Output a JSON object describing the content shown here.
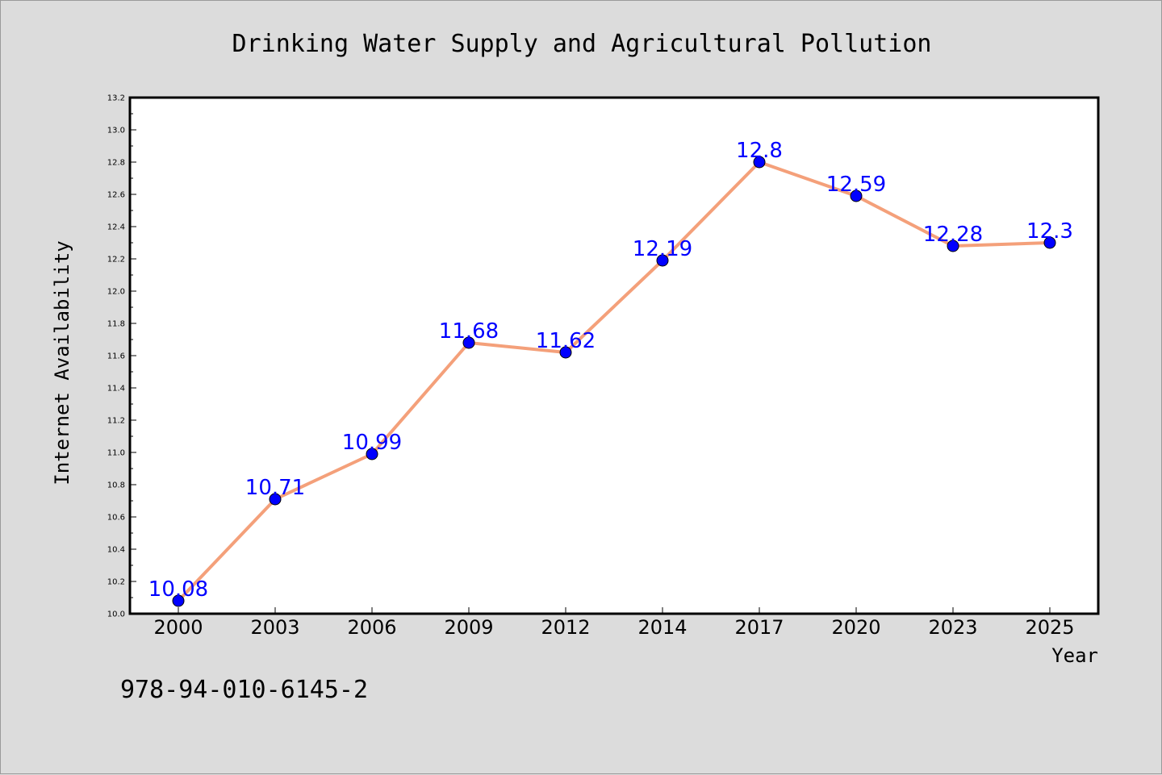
{
  "chart_data": {
    "type": "line",
    "title": "Drinking Water Supply and Agricultural Pollution",
    "xlabel": "Year",
    "ylabel": "Internet Availability",
    "categories": [
      "2000",
      "2003",
      "2006",
      "2009",
      "2012",
      "2014",
      "2017",
      "2020",
      "2023",
      "2025"
    ],
    "series": [
      {
        "values": [
          10.08,
          10.71,
          10.99,
          11.68,
          11.62,
          12.19,
          12.8,
          12.59,
          12.28,
          12.3
        ],
        "labels": [
          "10.08",
          "10.71",
          "10.99",
          "11.68",
          "11.62",
          "12.19",
          "12.8",
          "12.59",
          "12.28",
          "12.3"
        ],
        "line_color": "#f4a07a",
        "marker_color": "#0000ff"
      }
    ],
    "ylim": [
      10.0,
      13.2
    ],
    "yticks": [
      "10.0",
      "10.2",
      "10.4",
      "10.6",
      "10.8",
      "11.0",
      "11.2",
      "11.4",
      "11.6",
      "11.8",
      "12.0",
      "12.2",
      "12.4",
      "12.6",
      "12.8",
      "13.0",
      "13.2"
    ],
    "grid": false,
    "legend": "none"
  },
  "annotation": {
    "text": "978-94-010-6145-2"
  },
  "colors": {
    "background": "#dcdcdc",
    "plot_background": "#ffffff",
    "line": "#f4a07a",
    "marker": "#0000ff",
    "data_label": "#0000ff"
  }
}
